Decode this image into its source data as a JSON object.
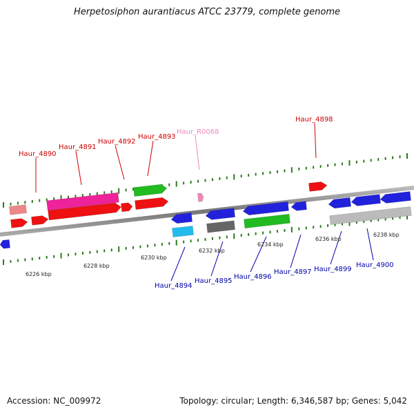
{
  "title": "Herpetosiphon aurantiacus ATCC 23779, complete genome",
  "footer": {
    "accession": "Accession: NC_009972",
    "stats": "Topology: circular; Length: 6,346,587 bp; Genes: 5,042"
  },
  "colors": {
    "forward_label": "#cc0000",
    "reverse_label": "#0000aa",
    "rna_label": "#ee88bb",
    "backbone": "#888888",
    "tick": "#2a7a1a"
  },
  "scale_labels": [
    "6226 kbp",
    "6228 kbp",
    "6230 kbp",
    "6232 kbp",
    "6234 kbp",
    "6236 kbp",
    "6238 kbp"
  ],
  "gene_labels": [
    {
      "text": "Haur_4890",
      "kind": "forward"
    },
    {
      "text": "Haur_4891",
      "kind": "forward"
    },
    {
      "text": "Haur_4892",
      "kind": "forward"
    },
    {
      "text": "Haur_4893",
      "kind": "forward"
    },
    {
      "text": "Haur_R0068",
      "kind": "rna"
    },
    {
      "text": "Haur_4898",
      "kind": "forward"
    },
    {
      "text": "Haur_4894",
      "kind": "reverse"
    },
    {
      "text": "Haur_4895",
      "kind": "reverse"
    },
    {
      "text": "Haur_4896",
      "kind": "reverse"
    },
    {
      "text": "Haur_4897",
      "kind": "reverse"
    },
    {
      "text": "Haur_4899",
      "kind": "reverse"
    },
    {
      "text": "Haur_4900",
      "kind": "reverse"
    }
  ]
}
